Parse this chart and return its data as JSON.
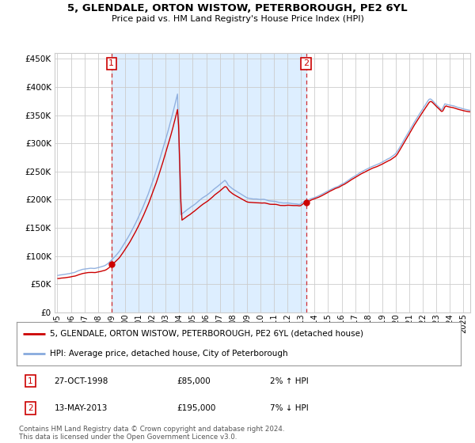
{
  "title": "5, GLENDALE, ORTON WISTOW, PETERBOROUGH, PE2 6YL",
  "subtitle": "Price paid vs. HM Land Registry's House Price Index (HPI)",
  "legend_line1": "5, GLENDALE, ORTON WISTOW, PETERBOROUGH, PE2 6YL (detached house)",
  "legend_line2": "HPI: Average price, detached house, City of Peterborough",
  "annotation1_date": "27-OCT-1998",
  "annotation1_price": "£85,000",
  "annotation1_hpi": "2% ↑ HPI",
  "annotation2_date": "13-MAY-2013",
  "annotation2_price": "£195,000",
  "annotation2_hpi": "7% ↓ HPI",
  "footer": "Contains HM Land Registry data © Crown copyright and database right 2024.\nThis data is licensed under the Open Government Licence v3.0.",
  "hpi_color": "#88aadd",
  "price_color": "#cc0000",
  "vline_color": "#cc0000",
  "shade_color": "#ddeeff",
  "background_color": "#ffffff",
  "grid_color": "#cccccc",
  "ylim": [
    0,
    460000
  ],
  "yticks": [
    0,
    50000,
    100000,
    150000,
    200000,
    250000,
    300000,
    350000,
    400000,
    450000
  ],
  "sale1_x": 1999.0,
  "sale1_y": 85000,
  "sale2_x": 2013.37,
  "sale2_y": 195000,
  "xmin": 1995.0,
  "xmax": 2025.5
}
